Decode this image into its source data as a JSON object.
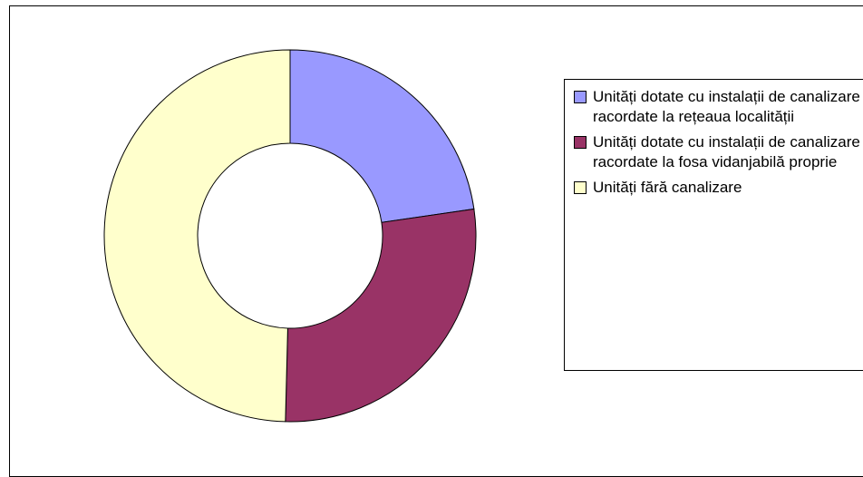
{
  "chart_data": {
    "type": "donut",
    "categories": [
      "Unități dotate cu instalații de canalizare racordate la rețeaua localității",
      "Unități dotate cu instalații de canalizare racordate la fosa vidanjabilă proprie",
      "Unități fără canalizare"
    ],
    "values": [
      22.7,
      27.7,
      49.6
    ],
    "colors": [
      "#9999ff",
      "#993366",
      "#ffffcc"
    ],
    "legend": "right"
  }
}
